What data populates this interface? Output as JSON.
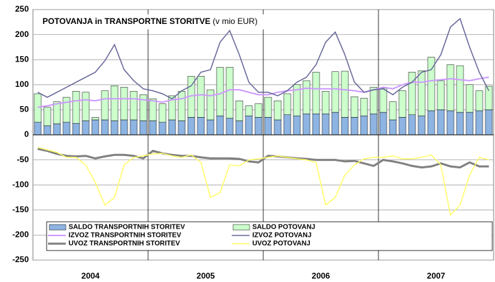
{
  "chart_data": {
    "type": "bar",
    "stacked": true,
    "title": "POTOVANJA in TRANSPORTNE STORITVE",
    "subtitle": "(v mio EUR)",
    "years": [
      "2004",
      "2005",
      "2006",
      "2007"
    ],
    "months_per_year": 12,
    "ylim": [
      -250,
      250
    ],
    "yticks": [
      -250,
      -200,
      -150,
      -100,
      -50,
      0,
      50,
      100,
      150,
      200,
      250
    ],
    "grid": true,
    "series": [
      {
        "name": "SALDO TRANSPORTNIH STORITEV",
        "type": "bar",
        "color": "#8db4e2",
        "values": [
          25,
          18,
          22,
          25,
          23,
          28,
          30,
          30,
          28,
          30,
          30,
          28,
          28,
          25,
          30,
          28,
          35,
          35,
          30,
          38,
          33,
          28,
          38,
          35,
          35,
          30,
          40,
          38,
          42,
          42,
          42,
          45,
          35,
          35,
          38,
          42,
          45,
          30,
          35,
          40,
          38,
          48,
          50,
          48,
          45,
          45,
          48,
          50
        ]
      },
      {
        "name": "SALDO POTOVANJ",
        "type": "bar",
        "color": "#ccffcc",
        "values": [
          57,
          37,
          44,
          50,
          64,
          57,
          5,
          58,
          70,
          65,
          57,
          52,
          44,
          37,
          48,
          59,
          82,
          82,
          60,
          97,
          102,
          40,
          20,
          27,
          40,
          38,
          42,
          62,
          66,
          83,
          45,
          81,
          92,
          41,
          35,
          53,
          48,
          36,
          53,
          85,
          90,
          107,
          58,
          92,
          93,
          55,
          40,
          47
        ]
      },
      {
        "name": "IZVOZ TRANSPORTNIH STORITEV",
        "type": "line",
        "color": "#cc99ff",
        "width": 2,
        "values": [
          55,
          58,
          62,
          65,
          68,
          70,
          68,
          72,
          72,
          72,
          72,
          70,
          68,
          65,
          70,
          72,
          78,
          80,
          78,
          82,
          90,
          90,
          85,
          80,
          80,
          85,
          88,
          90,
          93,
          92,
          92,
          92,
          90,
          88,
          85,
          90,
          95,
          92,
          100,
          105,
          105,
          108,
          110,
          112,
          110,
          108,
          112,
          115
        ]
      },
      {
        "name": "IZVOZ POTOVANJ",
        "type": "line",
        "color": "#666699",
        "width": 1.5,
        "values": [
          85,
          75,
          85,
          95,
          105,
          115,
          125,
          148,
          180,
          130,
          108,
          92,
          88,
          82,
          72,
          88,
          98,
          125,
          130,
          185,
          208,
          160,
          105,
          85,
          85,
          78,
          88,
          105,
          115,
          140,
          185,
          205,
          160,
          105,
          85,
          90,
          92,
          80,
          95,
          105,
          125,
          130,
          160,
          215,
          232,
          175,
          125,
          88
        ]
      },
      {
        "name": "UVOZ TRANSPORTNIH STORITEV",
        "type": "line",
        "color": "#808080",
        "width": 3,
        "values": [
          -28,
          -32,
          -38,
          -42,
          -43,
          -42,
          -47,
          -43,
          -40,
          -40,
          -42,
          -47,
          -32,
          -37,
          -40,
          -42,
          -42,
          -45,
          -47,
          -47,
          -47,
          -48,
          -53,
          -55,
          -42,
          -43,
          -45,
          -47,
          -48,
          -50,
          -50,
          -50,
          -53,
          -52,
          -57,
          -62,
          -50,
          -53,
          -57,
          -62,
          -65,
          -63,
          -57,
          -63,
          -65,
          -55,
          -63,
          -63
        ]
      },
      {
        "name": "UVOZ POTOVANJ",
        "type": "line",
        "color": "#ffff66",
        "width": 1.5,
        "values": [
          -25,
          -30,
          -35,
          -45,
          -45,
          -60,
          -95,
          -140,
          -125,
          -60,
          -45,
          -42,
          -38,
          -37,
          -42,
          -45,
          -40,
          -55,
          -125,
          -115,
          -60,
          -62,
          -50,
          -48,
          -45,
          -42,
          -45,
          -48,
          -50,
          -55,
          -140,
          -125,
          -80,
          -60,
          -48,
          -45,
          -45,
          -42,
          -48,
          -48,
          -45,
          -40,
          -60,
          -160,
          -140,
          -80,
          -45,
          -50
        ]
      }
    ]
  }
}
